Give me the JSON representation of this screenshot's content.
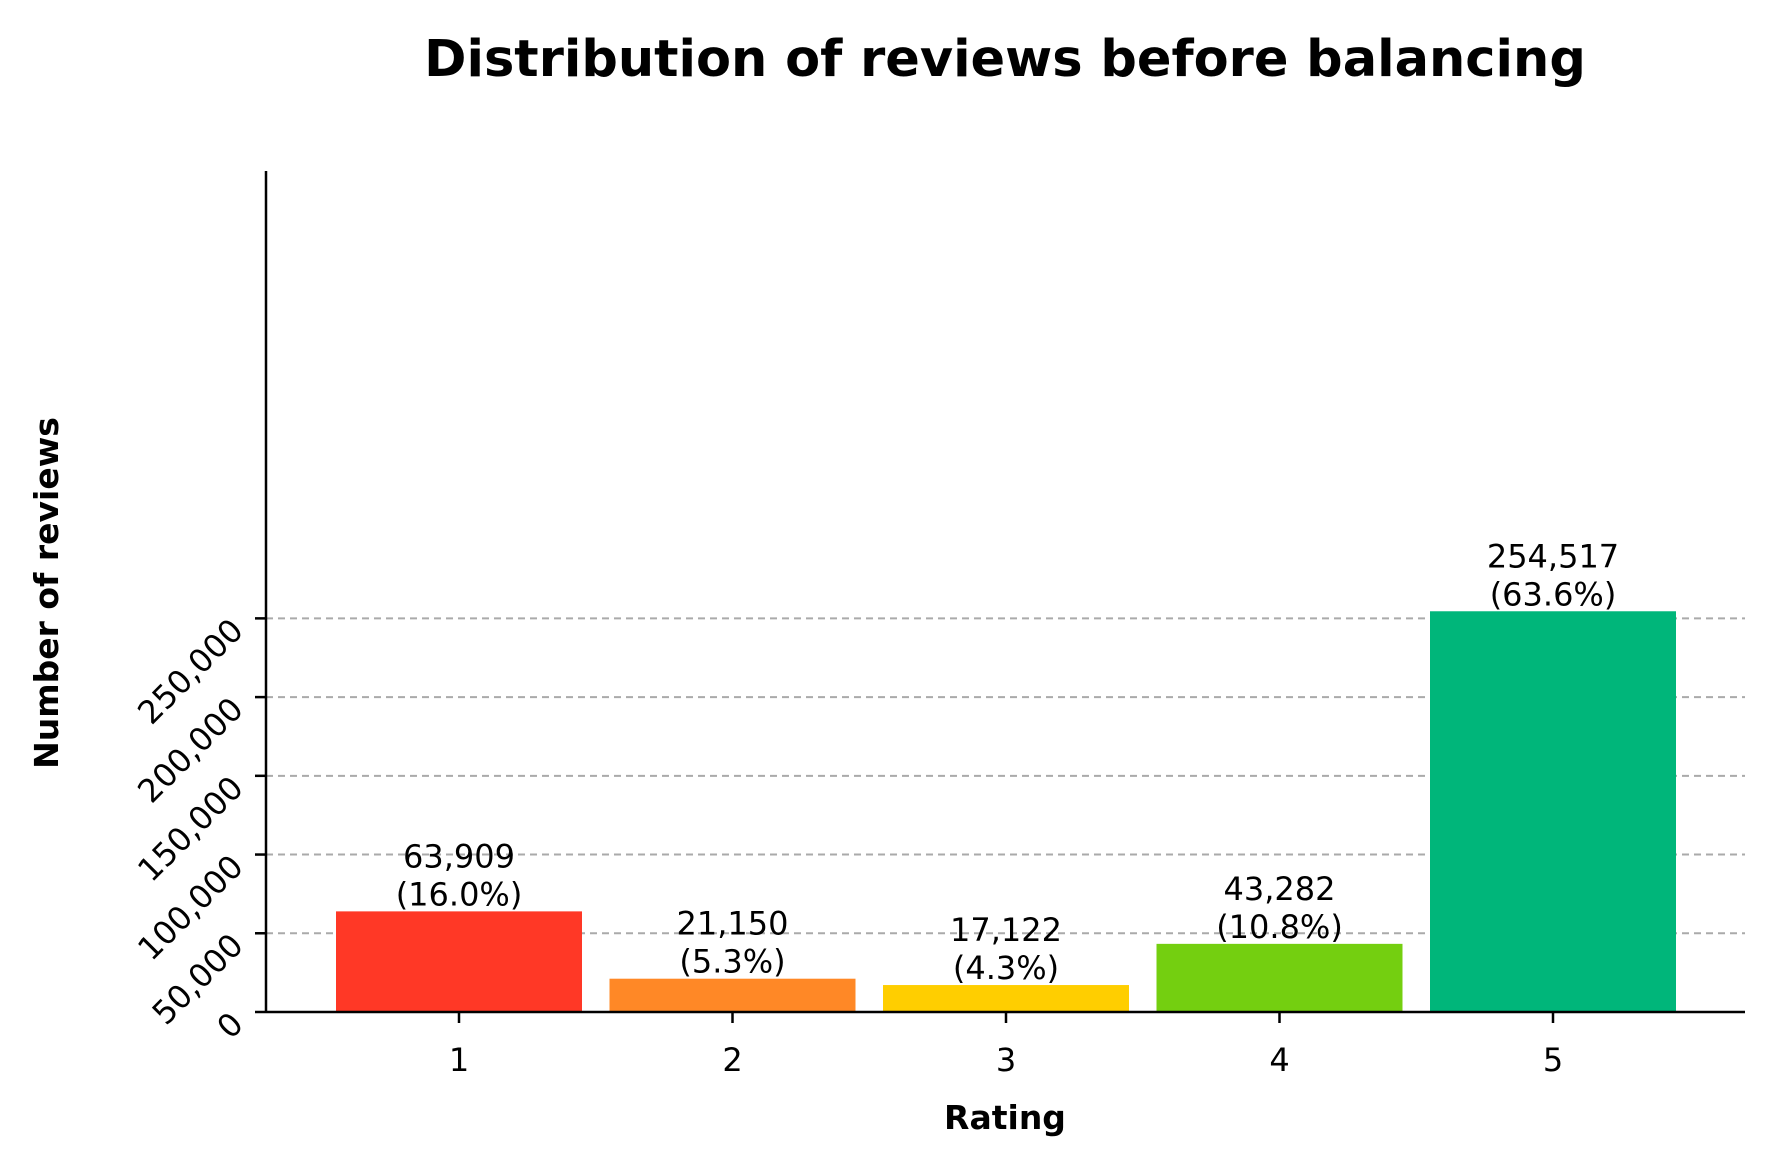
{
  "chart_data": {
    "type": "bar",
    "title": "Distribution of reviews before balancing",
    "xlabel": "Rating",
    "ylabel": "Number of reviews",
    "categories": [
      "1",
      "2",
      "3",
      "4",
      "5"
    ],
    "values": [
      63909,
      21150,
      17122,
      43282,
      254517
    ],
    "value_labels": [
      "63,909",
      "21,150",
      "17,122",
      "43,282",
      "254,517"
    ],
    "percent_labels": [
      "(16.0%)",
      "(5.3%)",
      "(4.3%)",
      "(10.8%)",
      "(63.6%)"
    ],
    "colors": [
      "#ff3826",
      "#ff8826",
      "#ffce00",
      "#74cf10",
      "#00b67a"
    ],
    "ylim": [
      0,
      267243
    ],
    "yticks": [
      0,
      50000,
      100000,
      150000,
      200000,
      250000
    ],
    "ytick_labels": [
      "0",
      "50,000",
      "100,000",
      "150,000",
      "200,000",
      "250,000"
    ],
    "ytick_rotation_deg": 45,
    "grid": "horizontal-dashed",
    "legend": "none"
  }
}
